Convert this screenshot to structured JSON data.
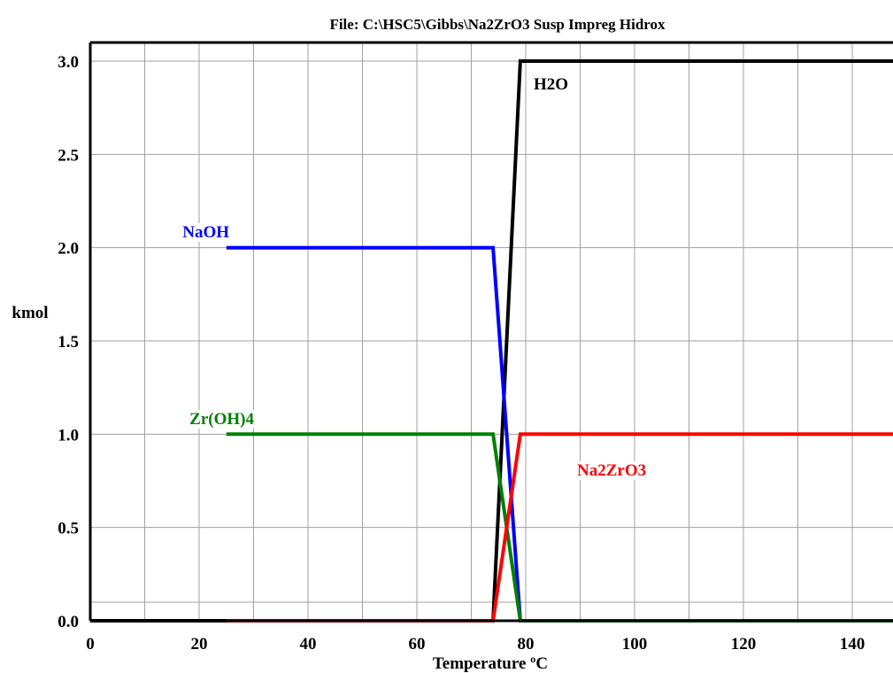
{
  "chart_data": {
    "type": "line",
    "title": "File: C:\\HSC5\\Gibbs\\Na2ZrO3 Susp Impreg Hidrox",
    "xlabel": "Temperature ºC",
    "ylabel": "kmol",
    "xlim": [
      0,
      148
    ],
    "ylim": [
      0,
      3.1
    ],
    "x_ticks": [
      0,
      20,
      40,
      60,
      80,
      100,
      120,
      140
    ],
    "y_ticks": [
      0.0,
      0.5,
      1.0,
      1.5,
      2.0,
      2.5,
      3.0
    ],
    "x_tick_labels": [
      "0",
      "20",
      "40",
      "60",
      "80",
      "100",
      "120",
      "140"
    ],
    "y_tick_labels": [
      "0.0",
      "0.5",
      "1.0",
      "1.5",
      "2.0",
      "2.5",
      "3.0"
    ],
    "grid": true,
    "series": [
      {
        "name": "H2O",
        "color": "#000000",
        "x": [
          0,
          74,
          79,
          148
        ],
        "y": [
          0,
          0,
          3,
          3
        ]
      },
      {
        "name": "NaOH",
        "color": "#0000ff",
        "x": [
          25,
          74,
          79,
          148
        ],
        "y": [
          2,
          2,
          0,
          0
        ]
      },
      {
        "name": "Zr(OH)4",
        "color": "#008000",
        "x": [
          25,
          74,
          79,
          148
        ],
        "y": [
          1,
          1,
          0,
          0
        ]
      },
      {
        "name": "Na2ZrO3",
        "color": "#ff0000",
        "x": [
          25,
          74,
          79,
          148
        ],
        "y": [
          0,
          0,
          1,
          1
        ]
      }
    ]
  }
}
